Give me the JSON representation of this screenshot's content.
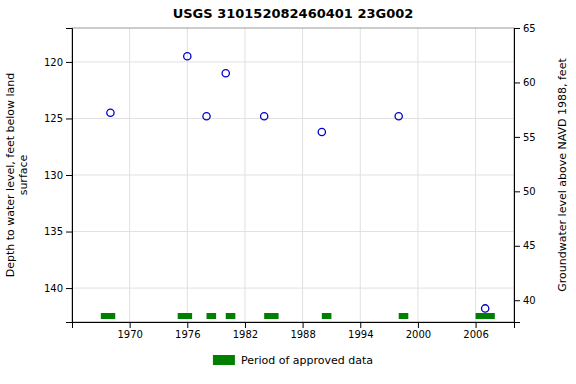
{
  "chart_data": {
    "type": "scatter",
    "title": "USGS 310152082460401 23G002",
    "y_label": "Depth to water level, feet below land\nsurface",
    "y2_label": "Groundwater level above NAVD 1988, feet",
    "x": [
      1968,
      1976,
      1978,
      1980,
      1984,
      1990,
      1998,
      2007
    ],
    "values": [
      124.5,
      119.5,
      124.8,
      121.0,
      124.8,
      126.2,
      124.8,
      141.8
    ],
    "color": "#0000cc",
    "marker": "circle",
    "xlim": [
      1964,
      2010
    ],
    "xticks": [
      1970,
      1976,
      1982,
      1988,
      1994,
      2000,
      2006
    ],
    "ylim": [
      143,
      117
    ],
    "yticks": [
      120,
      125,
      130,
      135,
      140
    ],
    "y2lim": [
      38,
      65
    ],
    "y2ticks": [
      40,
      45,
      50,
      55,
      60,
      65
    ],
    "grid": true,
    "legend": "bottom",
    "series": [
      {
        "name": "Period of approved data",
        "type": "span",
        "color": "#008000",
        "start": [
          1967,
          1975,
          1978,
          1980,
          1984,
          1990,
          1998,
          2006
        ],
        "end": [
          1968.5,
          1976.5,
          1979,
          1981,
          1985.5,
          1991,
          1999,
          2008
        ]
      }
    ]
  }
}
